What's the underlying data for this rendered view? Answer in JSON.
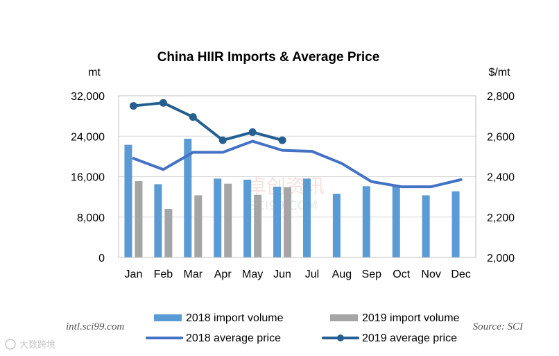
{
  "chart_data": {
    "type": "bar+line",
    "title": "China HIIR Imports & Average Price",
    "left_axis_unit": "mt",
    "right_axis_unit": "$/mt",
    "categories": [
      "Jan",
      "Feb",
      "Mar",
      "Apr",
      "May",
      "Jun",
      "Jul",
      "Aug",
      "Sep",
      "Oct",
      "Nov",
      "Dec"
    ],
    "left_ylim": [
      0,
      32000
    ],
    "left_ticks": [
      0,
      8000,
      16000,
      24000,
      32000
    ],
    "left_tick_labels": [
      "0",
      "8,000",
      "16,000",
      "24,000",
      "32,000"
    ],
    "right_ylim": [
      2000,
      2800
    ],
    "right_ticks": [
      2000,
      2200,
      2400,
      2600,
      2800
    ],
    "right_tick_labels": [
      "2,000",
      "2,200",
      "2,400",
      "2,600",
      "2,800"
    ],
    "bar_series": [
      {
        "name": "2018 import volume",
        "color": "#5b9bd5",
        "values": [
          22300,
          14500,
          23500,
          15600,
          15400,
          14000,
          15600,
          12600,
          14100,
          14300,
          12300,
          13100
        ]
      },
      {
        "name": "2019 import volume",
        "color": "#a5a5a5",
        "values": [
          15100,
          9600,
          12300,
          14600,
          12400,
          13900,
          null,
          null,
          null,
          null,
          null,
          null
        ]
      }
    ],
    "line_series": [
      {
        "name": "2018 average price",
        "color": "#4472c4",
        "markers": false,
        "values": [
          2490,
          2435,
          2520,
          2520,
          2575,
          2530,
          2525,
          2465,
          2375,
          2350,
          2350,
          2385
        ]
      },
      {
        "name": "2019 average price",
        "color": "#255e91",
        "markers": true,
        "values": [
          2750,
          2765,
          2695,
          2580,
          2620,
          2580,
          null,
          null,
          null,
          null,
          null,
          null
        ]
      }
    ],
    "legend": [
      "2018 import volume",
      "2019 import volume",
      "2018 average price",
      "2019 average price"
    ],
    "legend_position": "bottom",
    "grid": "horizontal",
    "footnote_left": "intl.sci99.com",
    "footnote_right": "Source: SCI"
  },
  "watermark": {
    "main": "卓创资讯",
    "sub": "SCI99.COM",
    "corner": "大数跨境"
  }
}
